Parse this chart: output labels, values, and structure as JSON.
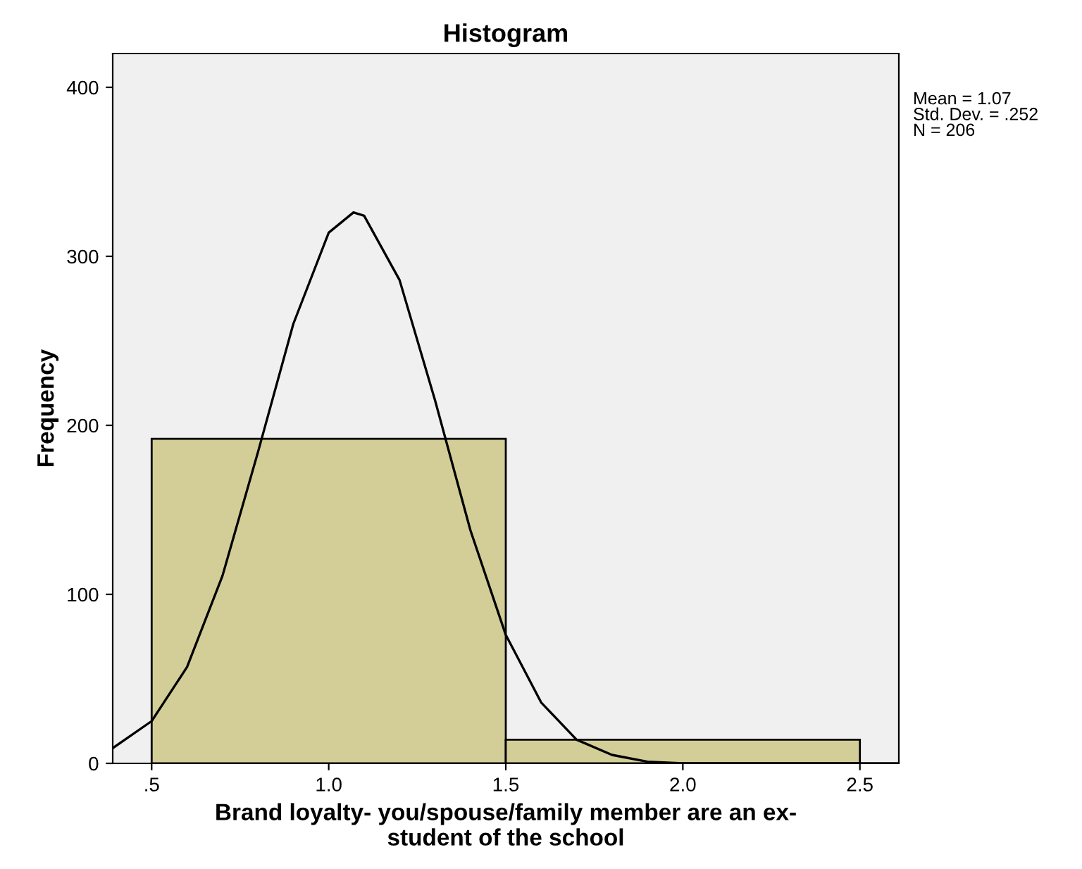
{
  "chart_data": {
    "type": "histogram",
    "title": "Histogram",
    "xlabel": "Brand loyalty- you/spouse/family member are an ex-\nstudent of the school",
    "ylabel": "Frequency",
    "bins": [
      0.5,
      1.5,
      2.5
    ],
    "values": [
      192,
      14
    ],
    "color": "#d3ce97",
    "series": [
      {
        "type": "line",
        "color": "#000000",
        "x": [
          0.39,
          0.5,
          0.6,
          0.7,
          0.8,
          0.9,
          1.0,
          1.07,
          1.1,
          1.2,
          1.3,
          1.4,
          1.5,
          1.6,
          1.7,
          1.8,
          1.9,
          2.0,
          2.2,
          2.4,
          2.61
        ],
        "values": [
          9,
          25,
          57,
          111,
          184,
          260,
          314,
          326,
          324,
          286,
          215,
          138,
          76,
          36,
          14,
          5,
          1,
          0,
          0,
          0,
          0
        ]
      }
    ],
    "xlim": [
      0.39,
      2.61
    ],
    "ylim": [
      0,
      420
    ],
    "xticks": [
      {
        "value": 0.5,
        "label": ".5"
      },
      {
        "value": 1.0,
        "label": "1.0"
      },
      {
        "value": 1.5,
        "label": "1.5"
      },
      {
        "value": 2.0,
        "label": "2.0"
      },
      {
        "value": 2.5,
        "label": "2.5"
      }
    ],
    "yticks": [
      0,
      100,
      200,
      300,
      400
    ],
    "annotations": [
      "Mean = 1.07\nStd. Dev. = .252\nN = 206"
    ],
    "grid": false,
    "legend": false
  }
}
